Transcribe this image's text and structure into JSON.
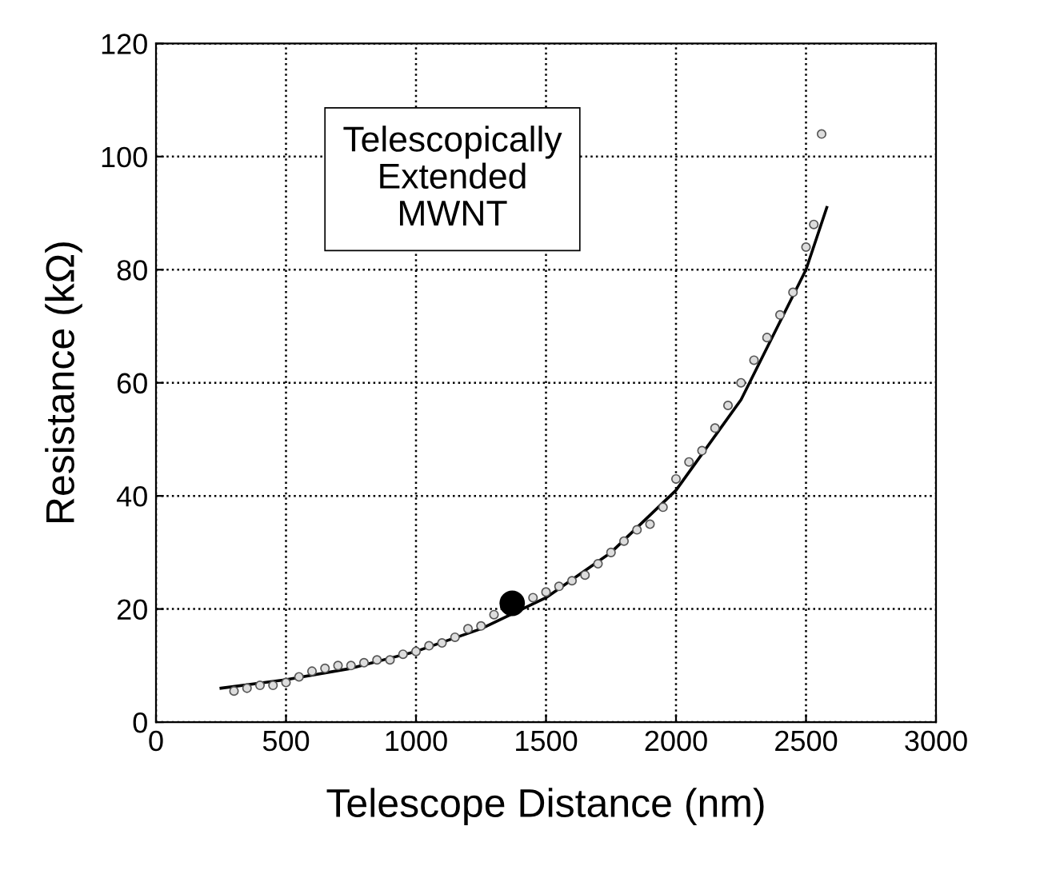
{
  "chart_data": {
    "type": "scatter",
    "xlabel": "Telescope Distance (nm)",
    "ylabel": "Resistance (kΩ)",
    "xlim": [
      0,
      3000
    ],
    "xticks": [
      0,
      500,
      1000,
      1500,
      2000,
      2500,
      3000
    ],
    "ylim": [
      0,
      120
    ],
    "yticks": [
      0,
      20,
      40,
      60,
      80,
      100,
      120
    ],
    "grid": true,
    "annotations": [
      "Telescopically\nExtended\nMWNT"
    ],
    "series": [
      {
        "color": "#555555",
        "marker": "circle",
        "x": [
          300,
          350,
          400,
          450,
          500,
          550,
          600,
          650,
          700,
          750,
          800,
          850,
          900,
          950,
          1000,
          1050,
          1100,
          1150,
          1200,
          1250,
          1300,
          1450,
          1500,
          1550,
          1600,
          1650,
          1700,
          1750,
          1800,
          1850,
          1900,
          1950,
          2000,
          2050,
          2100,
          2150,
          2200,
          2250,
          2300,
          2350,
          2400,
          2450,
          2500,
          2530,
          2560
        ],
        "values": [
          5.5,
          6,
          6.5,
          6.5,
          7,
          8,
          9,
          9.5,
          10,
          10,
          10.5,
          11,
          11,
          12,
          12.5,
          13.5,
          14,
          15,
          16.5,
          17,
          19,
          22,
          23,
          24,
          25,
          26,
          28,
          30,
          32,
          34,
          35,
          38,
          43,
          46,
          48,
          52,
          56,
          60,
          64,
          68,
          72,
          76,
          84,
          88,
          104
        ]
      },
      {
        "type": "line",
        "color": "#000000",
        "marker": "none",
        "x": [
          250,
          500,
          750,
          1000,
          1250,
          1500,
          1750,
          2000,
          2250,
          2500,
          2580
        ],
        "values": [
          6,
          7.5,
          9.5,
          12.5,
          16.5,
          22,
          30,
          41,
          57,
          80,
          91
        ]
      },
      {
        "type": "bubble",
        "color": "#000000",
        "x": [
          1370
        ],
        "values": [
          21
        ],
        "sizes": [
          1
        ]
      }
    ]
  }
}
